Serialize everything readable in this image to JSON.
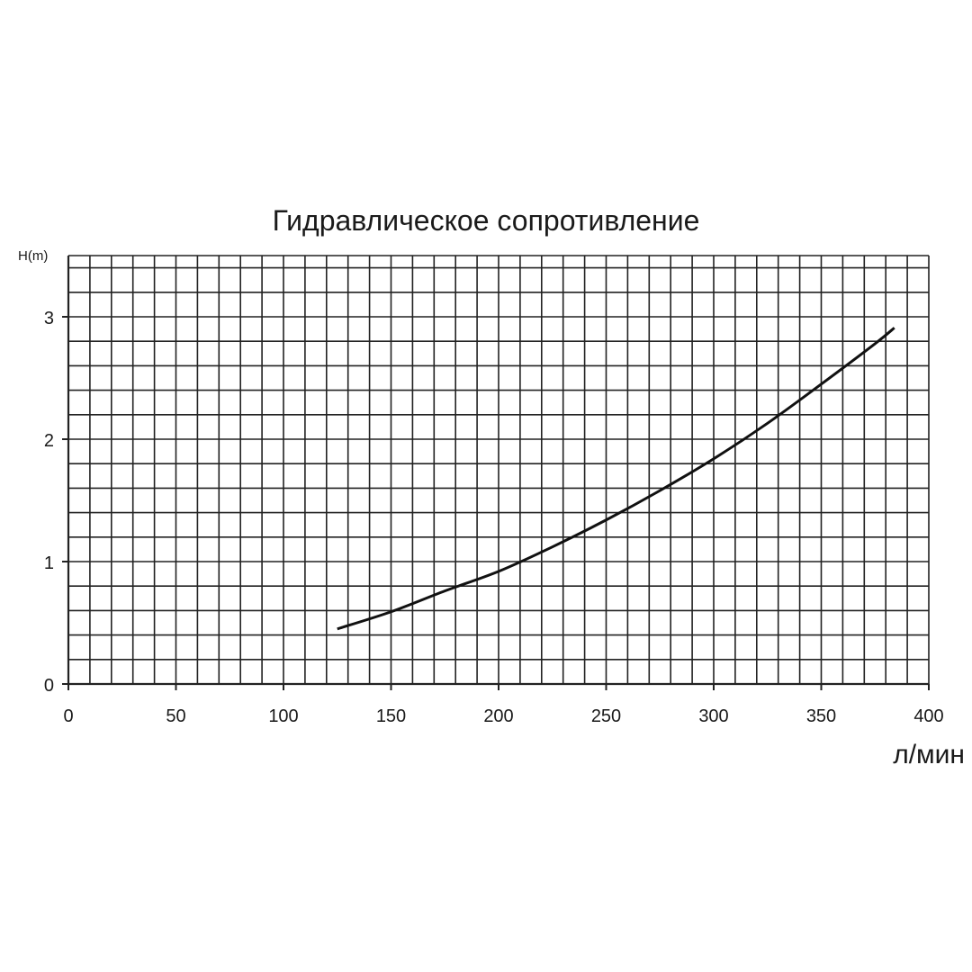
{
  "chart_data": {
    "type": "line",
    "title": "Гидравлическое сопротивление",
    "ylabel": "H(m)",
    "xlabel": "л/мин",
    "xlim": [
      0,
      400
    ],
    "ylim": [
      0,
      3.5
    ],
    "x_ticks": [
      "0",
      "50",
      "100",
      "150",
      "200",
      "250",
      "300",
      "350",
      "400"
    ],
    "y_ticks": [
      "0",
      "1",
      "2",
      "3"
    ],
    "grid": true,
    "grid_x_step": 10,
    "grid_y_step": 0.2,
    "series": [
      {
        "x": [
          125,
          150,
          175,
          200,
          225,
          250,
          275,
          300,
          325,
          350,
          375,
          384
        ],
        "y": [
          0.45,
          0.59,
          0.76,
          0.92,
          1.12,
          1.34,
          1.58,
          1.84,
          2.13,
          2.45,
          2.78,
          2.91
        ],
        "color": "#111111"
      }
    ]
  }
}
